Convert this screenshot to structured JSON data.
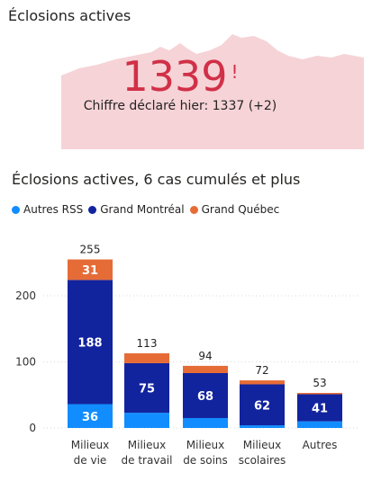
{
  "kpi": {
    "title": "Éclosions actives",
    "value": "1339",
    "alert_symbol": "!",
    "subtitle": "Chiffre déclaré hier: 1337 (+2)",
    "accent_color": "#d13047",
    "area_color": "#f6d3d7"
  },
  "chart_data": {
    "type": "bar",
    "stacked": true,
    "title": "Éclosions actives, 6 cas cumulés et plus",
    "categories": [
      "Milieux de vie",
      "Milieux de travail",
      "Milieux de soins",
      "Milieux scolaires",
      "Autres"
    ],
    "series": [
      {
        "name": "Autres RSS",
        "color": "#118dff",
        "values": [
          36,
          23,
          15,
          4,
          10
        ]
      },
      {
        "name": "Grand Montréal",
        "color": "#12239e",
        "values": [
          188,
          75,
          68,
          62,
          41
        ]
      },
      {
        "name": "Grand Québec",
        "color": "#e66c37",
        "values": [
          31,
          15,
          11,
          6,
          2
        ]
      }
    ],
    "totals": [
      255,
      113,
      94,
      72,
      53
    ],
    "segment_labels": [
      [
        "36",
        "188",
        "31"
      ],
      [
        "",
        "75",
        ""
      ],
      [
        "",
        "68",
        ""
      ],
      [
        "",
        "62",
        ""
      ],
      [
        "",
        "41",
        ""
      ]
    ],
    "yticks": [
      0,
      100,
      200
    ],
    "ylim": [
      0,
      270
    ],
    "legend_position": "top-left",
    "grid": true
  }
}
